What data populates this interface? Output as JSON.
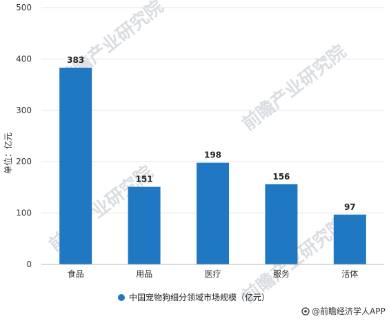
{
  "chart_data": {
    "type": "bar",
    "categories": [
      "食品",
      "用品",
      "医疗",
      "服务",
      "活体"
    ],
    "series": [
      {
        "name": "中国宠物狗细分领域市场规模（亿元）",
        "values": [
          383,
          151,
          198,
          156,
          97
        ]
      }
    ],
    "ylabel": "单位：亿元",
    "ylim": [
      0,
      500
    ],
    "yticks": [
      0,
      100,
      200,
      300,
      400,
      500
    ],
    "grid": true,
    "legend_position": "bottom-center",
    "bar_color": "#1f78c1"
  },
  "watermark": "前瞻产业研究院",
  "source": "@前瞻经济学人APP"
}
